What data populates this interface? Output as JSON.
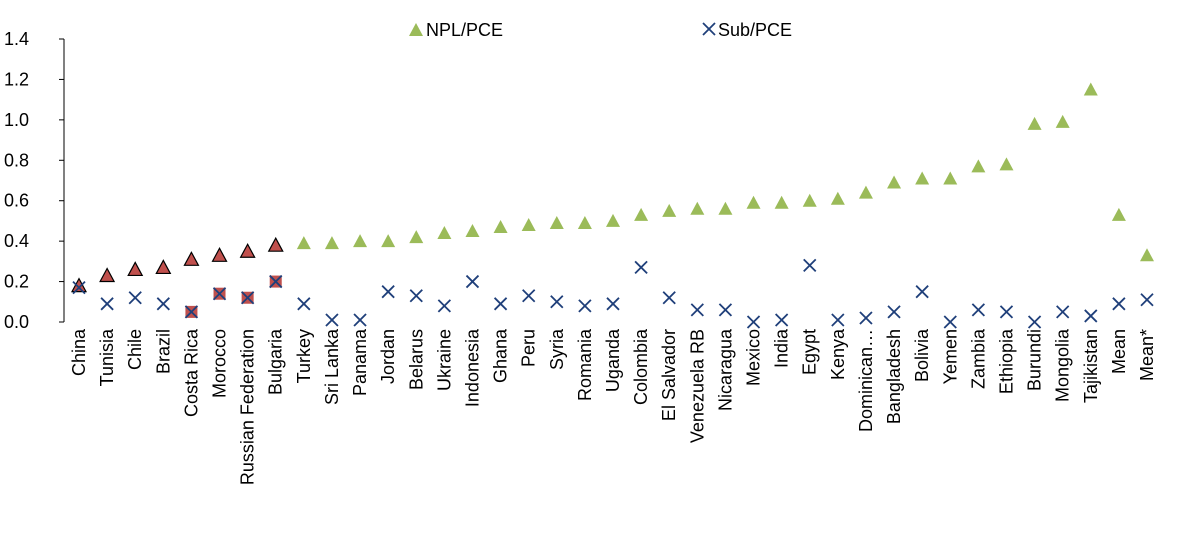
{
  "chart_data": {
    "type": "scatter",
    "title": "",
    "xlabel": "",
    "ylabel": "",
    "ylim": [
      0,
      1.4
    ],
    "yticks": [
      "0.0",
      "0.2",
      "0.4",
      "0.6",
      "0.8",
      "1.0",
      "1.2",
      "1.4"
    ],
    "grid": false,
    "legend_position": "top-center",
    "categories": [
      "China",
      "Tunisia",
      "Chile",
      "Brazil",
      "Costa Rica",
      "Morocco",
      "Russian Federation",
      "Bulgaria",
      "Turkey",
      "Sri Lanka",
      "Panama",
      "Jordan",
      "Belarus",
      "Ukraine",
      "Indonesia",
      "Ghana",
      "Peru",
      "Syria",
      "Romania",
      "Uganda",
      "Colombia",
      "El Salvador",
      "Venezuela RB",
      "Nicaragua",
      "Mexico",
      "India",
      "Egypt",
      "Kenya",
      "Dominican…",
      "Bangladesh",
      "Bolivia",
      "Yemen",
      "Zambia",
      "Ethiopia",
      "Burundi",
      "Mongolia",
      "Tajikistan",
      "Mean",
      "Mean*"
    ],
    "highlighted_categories": [
      "China",
      "Tunisia",
      "Chile",
      "Brazil",
      "Costa Rica",
      "Morocco",
      "Russian Federation",
      "Bulgaria"
    ],
    "highlight_color": "#c0504d",
    "series": [
      {
        "name": "NPL/PCE",
        "marker": "triangle",
        "color": "#9bbb59",
        "values": [
          0.18,
          0.23,
          0.26,
          0.27,
          0.31,
          0.33,
          0.35,
          0.38,
          0.39,
          0.39,
          0.4,
          0.4,
          0.42,
          0.44,
          0.45,
          0.47,
          0.48,
          0.49,
          0.49,
          0.5,
          0.53,
          0.55,
          0.56,
          0.56,
          0.59,
          0.59,
          0.6,
          0.61,
          0.64,
          0.69,
          0.71,
          0.71,
          0.77,
          0.78,
          0.98,
          0.99,
          1.15,
          0.53,
          0.33
        ]
      },
      {
        "name": "Sub/PCE",
        "marker": "x",
        "color": "#1f3f7a",
        "values": [
          0.17,
          0.09,
          0.12,
          0.09,
          0.05,
          0.14,
          0.12,
          0.2,
          0.09,
          0.01,
          0.01,
          0.15,
          0.13,
          0.08,
          0.2,
          0.09,
          0.13,
          0.1,
          0.08,
          0.09,
          0.27,
          0.12,
          0.06,
          0.06,
          0.0,
          0.01,
          0.28,
          0.01,
          0.02,
          0.05,
          0.15,
          0.0,
          0.06,
          0.05,
          0.0,
          0.05,
          0.03,
          0.09,
          0.11
        ]
      }
    ]
  }
}
